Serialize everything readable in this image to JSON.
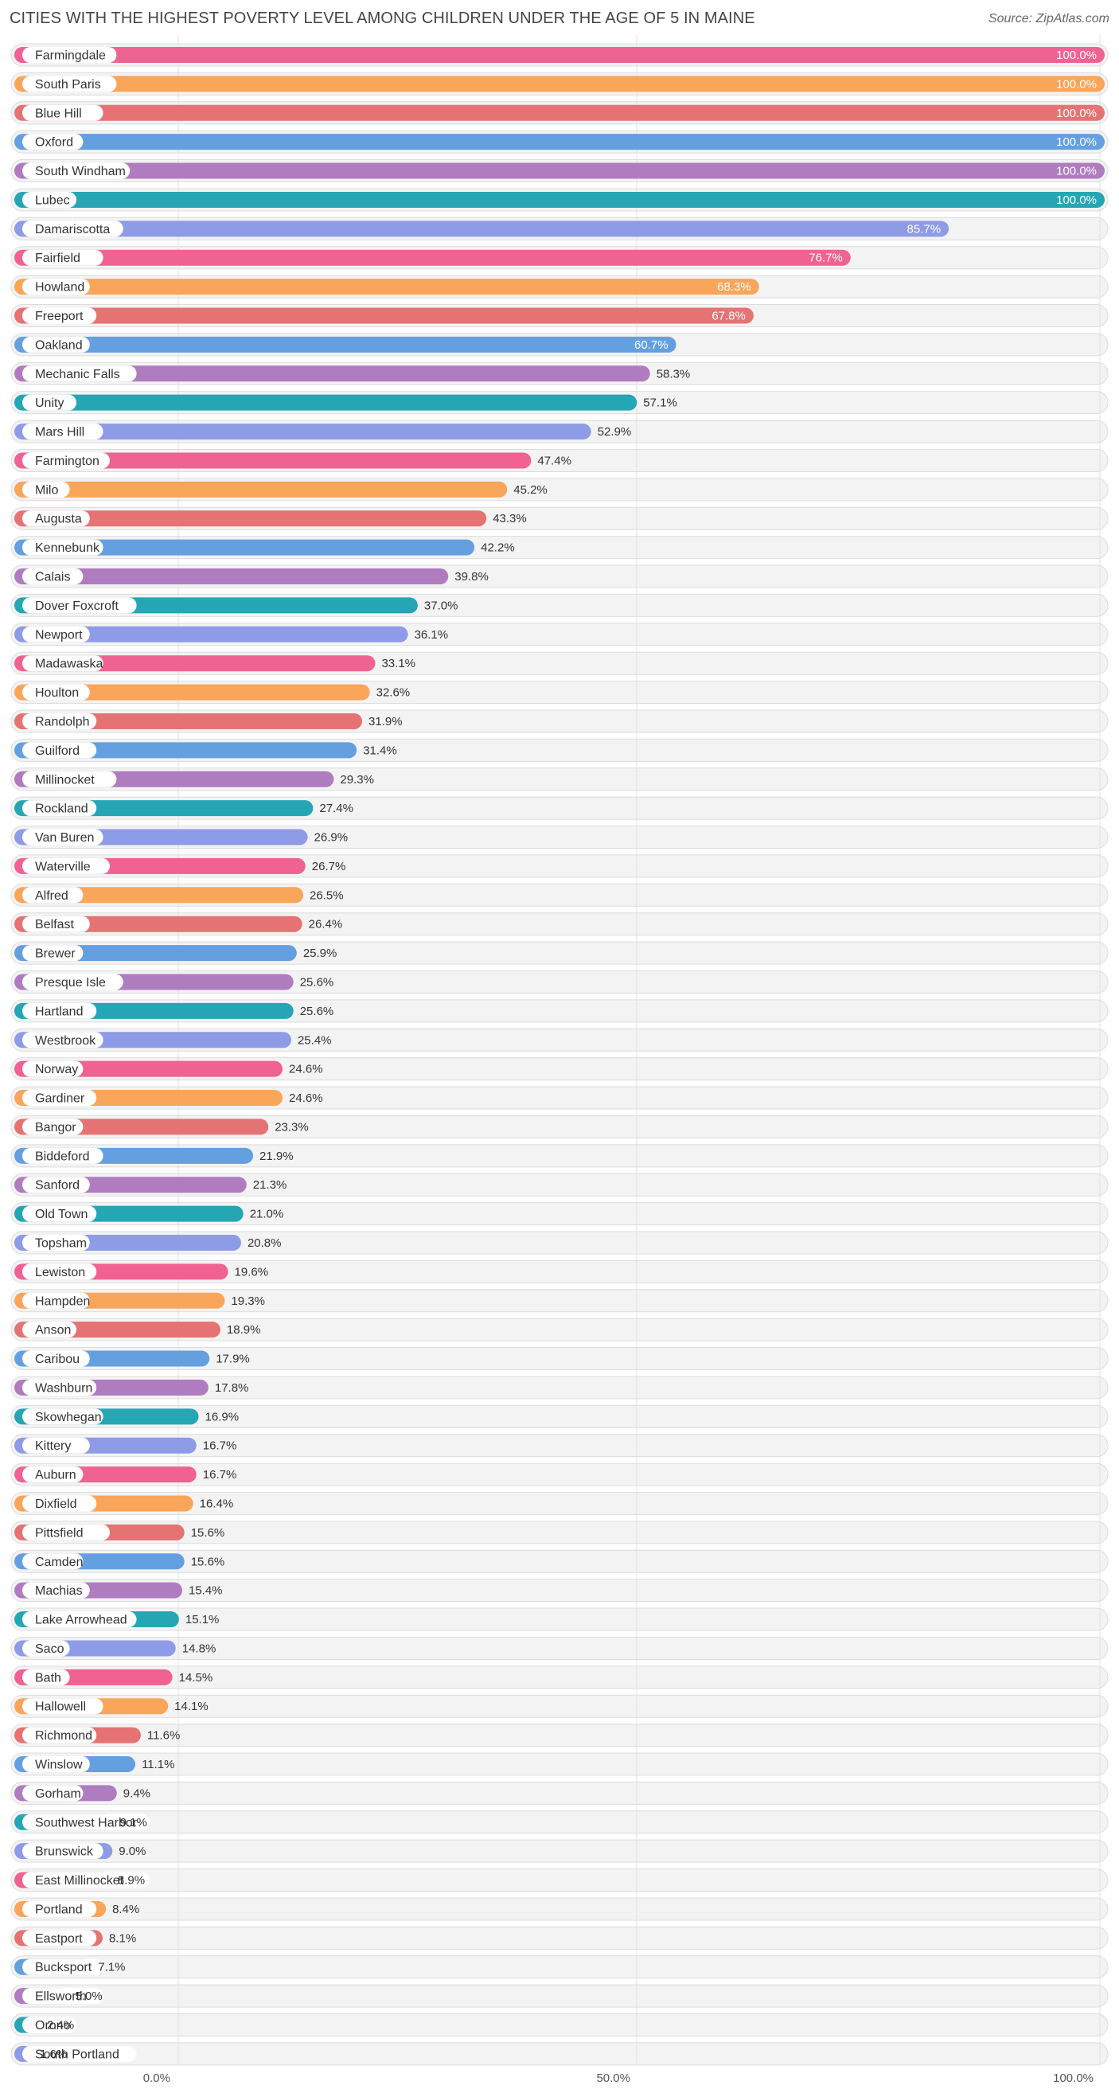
{
  "header": {
    "title": "CITIES WITH THE HIGHEST POVERTY LEVEL AMONG CHILDREN UNDER THE AGE OF 5 IN MAINE",
    "source": "Source: ZipAtlas.com"
  },
  "chart_data": {
    "type": "bar",
    "orientation": "horizontal",
    "title": "CITIES WITH THE HIGHEST POVERTY LEVEL AMONG CHILDREN UNDER THE AGE OF 5 IN MAINE",
    "xlabel": "",
    "ylabel": "",
    "xlim": [
      0,
      100
    ],
    "x_ticks": [
      "0.0%",
      "50.0%",
      "100.0%"
    ],
    "value_suffix": "%",
    "categories": [
      "Farmingdale",
      "South Paris",
      "Blue Hill",
      "Oxford",
      "South Windham",
      "Lubec",
      "Damariscotta",
      "Fairfield",
      "Howland",
      "Freeport",
      "Oakland",
      "Mechanic Falls",
      "Unity",
      "Mars Hill",
      "Farmington",
      "Milo",
      "Augusta",
      "Kennebunk",
      "Calais",
      "Dover Foxcroft",
      "Newport",
      "Madawaska",
      "Houlton",
      "Randolph",
      "Guilford",
      "Millinocket",
      "Rockland",
      "Van Buren",
      "Waterville",
      "Alfred",
      "Belfast",
      "Brewer",
      "Presque Isle",
      "Hartland",
      "Westbrook",
      "Norway",
      "Gardiner",
      "Bangor",
      "Biddeford",
      "Sanford",
      "Old Town",
      "Topsham",
      "Lewiston",
      "Hampden",
      "Anson",
      "Caribou",
      "Washburn",
      "Skowhegan",
      "Kittery",
      "Auburn",
      "Dixfield",
      "Pittsfield",
      "Camden",
      "Machias",
      "Lake Arrowhead",
      "Saco",
      "Bath",
      "Hallowell",
      "Richmond",
      "Winslow",
      "Gorham",
      "Southwest Harbor",
      "Brunswick",
      "East Millinocket",
      "Portland",
      "Eastport",
      "Bucksport",
      "Ellsworth",
      "Orono",
      "South Portland"
    ],
    "values": [
      100.0,
      100.0,
      100.0,
      100.0,
      100.0,
      100.0,
      85.7,
      76.7,
      68.3,
      67.8,
      60.7,
      58.3,
      57.1,
      52.9,
      47.4,
      45.2,
      43.3,
      42.2,
      39.8,
      37.0,
      36.1,
      33.1,
      32.6,
      31.9,
      31.4,
      29.3,
      27.4,
      26.9,
      26.7,
      26.5,
      26.4,
      25.9,
      25.6,
      25.6,
      25.4,
      24.6,
      24.6,
      23.3,
      21.9,
      21.3,
      21.0,
      20.8,
      19.6,
      19.3,
      18.9,
      17.9,
      17.8,
      16.9,
      16.7,
      16.7,
      16.4,
      15.6,
      15.6,
      15.4,
      15.1,
      14.8,
      14.5,
      14.1,
      11.6,
      11.1,
      9.4,
      9.1,
      9.0,
      8.9,
      8.4,
      8.1,
      7.1,
      5.0,
      2.4,
      1.6
    ],
    "palette": [
      "#f06292",
      "#f9a55a",
      "#e57373",
      "#64a0e0",
      "#b07cc0",
      "#26a6b4",
      "#8e9be6"
    ],
    "legend": "none",
    "grid": true
  }
}
